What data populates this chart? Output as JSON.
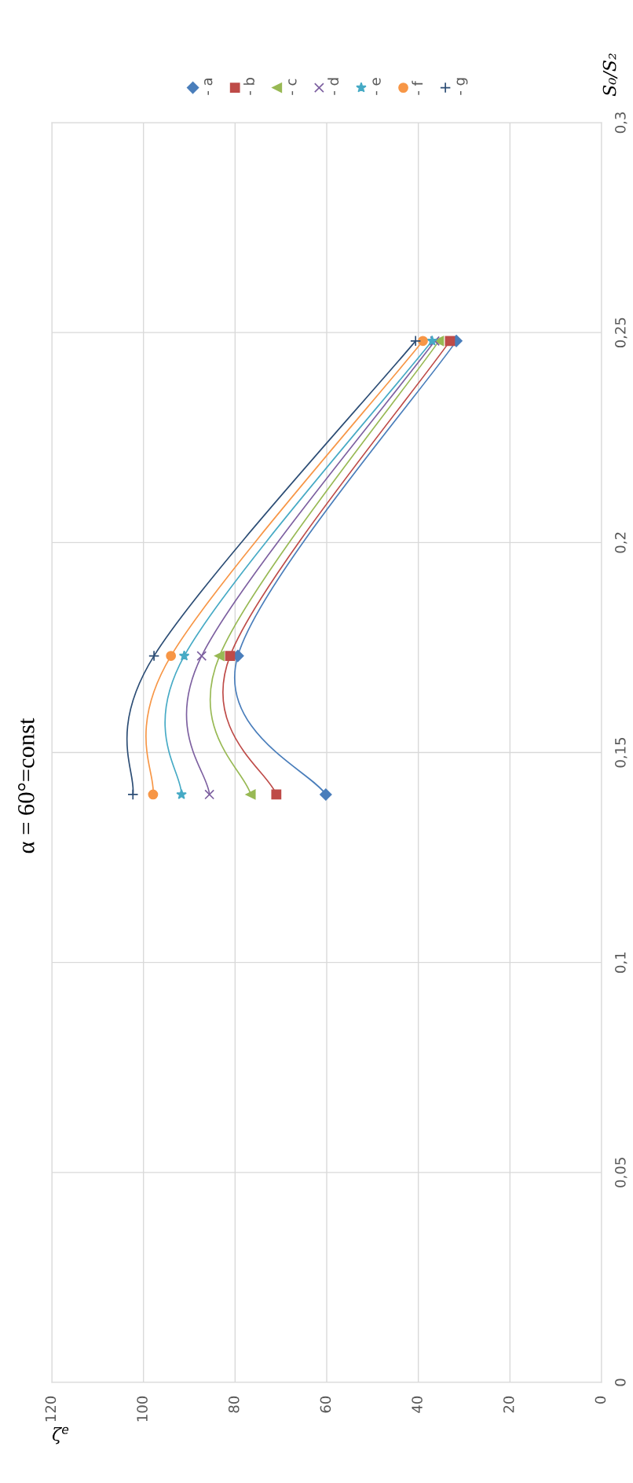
{
  "chart_data": {
    "type": "line",
    "title": "α = 60°=const",
    "xlabel": "ζ$^{e}$",
    "ylabel": "S₀/S₂",
    "series": [
      {
        "name": "- a",
        "color": "#4a7ebb",
        "marker": "diamond",
        "x": [
          60.2,
          79.4,
          31.7
        ],
        "values": [
          0.14,
          0.173,
          0.248
        ]
      },
      {
        "name": "- b",
        "color": "#be4b48",
        "marker": "square",
        "x": [
          71.0,
          81.1,
          33.1
        ],
        "values": [
          0.14,
          0.173,
          0.248
        ]
      },
      {
        "name": "- c",
        "color": "#98b954",
        "marker": "triangle",
        "x": [
          76.6,
          83.4,
          35.5
        ],
        "values": [
          0.14,
          0.173,
          0.248
        ]
      },
      {
        "name": "- d",
        "color": "#7d60a0",
        "marker": "cross",
        "x": [
          85.6,
          87.3,
          36.4
        ],
        "values": [
          0.14,
          0.173,
          0.248
        ]
      },
      {
        "name": "- e",
        "color": "#46aac5",
        "marker": "star",
        "x": [
          91.7,
          91.1,
          37.0
        ],
        "values": [
          0.14,
          0.173,
          0.248
        ]
      },
      {
        "name": "- f",
        "color": "#f79646",
        "marker": "circle",
        "x": [
          97.9,
          94.0,
          39.0
        ],
        "values": [
          0.14,
          0.173,
          0.248
        ]
      },
      {
        "name": "- g",
        "color": "#2c4d75",
        "marker": "plus",
        "x": [
          102.3,
          97.7,
          40.6
        ],
        "values": [
          0.14,
          0.173,
          0.248
        ]
      }
    ],
    "xlim": [
      120,
      0
    ],
    "xticks": [
      0,
      20,
      40,
      60,
      80,
      100,
      120
    ],
    "ylim": [
      0,
      0.3
    ],
    "yticks": [
      0,
      {
        "value": 0.05,
        "label": "0,05"
      },
      {
        "value": 0.1,
        "label": "0,1"
      },
      {
        "value": 0.15,
        "label": "0,15"
      },
      {
        "value": 0.2,
        "label": "0,2"
      },
      {
        "value": 0.25,
        "label": "0,25"
      },
      {
        "value": 0.3,
        "label": "0,3"
      }
    ],
    "grid": true,
    "legend": "top",
    "line_style": "solid"
  }
}
